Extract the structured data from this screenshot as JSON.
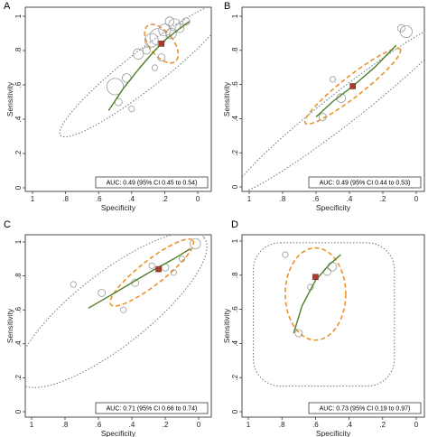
{
  "chart_data": [
    {
      "type": "scatter",
      "panel_label": "A",
      "xlabel": "Specificity",
      "ylabel": "Sensitivity",
      "xlim": [
        1,
        0
      ],
      "ylim": [
        0,
        1
      ],
      "x_ticks": [
        1,
        0.8,
        0.6,
        0.4,
        0.2,
        0
      ],
      "x_tick_labels": [
        "1",
        ".8",
        ".6",
        ".4",
        ".2",
        "0"
      ],
      "y_ticks": [
        0,
        0.2,
        0.4,
        0.6,
        0.8,
        1
      ],
      "y_tick_labels": [
        "0",
        ".2",
        ".4",
        ".6",
        ".8",
        "1"
      ],
      "auc_text": "AUC: 0.49 (95% CI 0.45 to 0.54)",
      "summary_point": {
        "specificity": 0.22,
        "sensitivity": 0.84
      },
      "studies": [
        {
          "specificity": 0.5,
          "sensitivity": 0.59,
          "weight": 9
        },
        {
          "specificity": 0.43,
          "sensitivity": 0.64,
          "weight": 4
        },
        {
          "specificity": 0.48,
          "sensitivity": 0.5,
          "weight": 3
        },
        {
          "specificity": 0.36,
          "sensitivity": 0.78,
          "weight": 5
        },
        {
          "specificity": 0.31,
          "sensitivity": 0.8,
          "weight": 3
        },
        {
          "specificity": 0.28,
          "sensitivity": 0.86,
          "weight": 7
        },
        {
          "specificity": 0.24,
          "sensitivity": 0.88,
          "weight": 9
        },
        {
          "specificity": 0.2,
          "sensitivity": 0.92,
          "weight": 6
        },
        {
          "specificity": 0.16,
          "sensitivity": 0.9,
          "weight": 5
        },
        {
          "specificity": 0.14,
          "sensitivity": 0.95,
          "weight": 6
        },
        {
          "specificity": 0.17,
          "sensitivity": 0.97,
          "weight": 4
        },
        {
          "specificity": 0.11,
          "sensitivity": 0.93,
          "weight": 4
        },
        {
          "specificity": 0.07,
          "sensitivity": 0.97,
          "weight": 3
        },
        {
          "specificity": 0.22,
          "sensitivity": 0.76,
          "weight": 3
        },
        {
          "specificity": 0.26,
          "sensitivity": 0.7,
          "weight": 2
        },
        {
          "specificity": 0.4,
          "sensitivity": 0.46,
          "weight": 2
        }
      ],
      "sroc_curve": [
        [
          0.54,
          0.45
        ],
        [
          0.45,
          0.58
        ],
        [
          0.35,
          0.7
        ],
        [
          0.27,
          0.79
        ],
        [
          0.2,
          0.86
        ],
        [
          0.12,
          0.92
        ],
        [
          0.05,
          0.97
        ]
      ],
      "confidence_region": {
        "center": [
          0.22,
          0.84
        ],
        "rx": 0.06,
        "ry": 0.11
      },
      "prediction_region": {
        "center": [
          0.32,
          0.69
        ],
        "rx": 0.48,
        "ry": 0.08
      }
    },
    {
      "type": "scatter",
      "panel_label": "B",
      "xlabel": "Specificity",
      "ylabel": "Sensitivity",
      "xlim": [
        1,
        0
      ],
      "ylim": [
        0,
        1
      ],
      "x_ticks": [
        1,
        0.8,
        0.6,
        0.4,
        0.2,
        0
      ],
      "x_tick_labels": [
        "1",
        ".8",
        ".6",
        ".4",
        ".2",
        "0"
      ],
      "y_ticks": [
        0,
        0.2,
        0.4,
        0.6,
        0.8,
        1
      ],
      "y_tick_labels": [
        "0",
        ".2",
        ".4",
        ".6",
        ".8",
        "1"
      ],
      "auc_text": "AUC: 0.49 (95% CI 0.44 to 0.53)",
      "summary_point": {
        "specificity": 0.38,
        "sensitivity": 0.59
      },
      "studies": [
        {
          "specificity": 0.06,
          "sensitivity": 0.91,
          "weight": 6
        },
        {
          "specificity": 0.09,
          "sensitivity": 0.93,
          "weight": 3
        },
        {
          "specificity": 0.45,
          "sensitivity": 0.52,
          "weight": 4
        },
        {
          "specificity": 0.56,
          "sensitivity": 0.41,
          "weight": 3
        },
        {
          "specificity": 0.5,
          "sensitivity": 0.63,
          "weight": 2
        }
      ],
      "sroc_curve": [
        [
          0.6,
          0.41
        ],
        [
          0.5,
          0.5
        ],
        [
          0.38,
          0.59
        ],
        [
          0.25,
          0.7
        ],
        [
          0.12,
          0.83
        ]
      ],
      "confidence_region": {
        "center": [
          0.38,
          0.59
        ],
        "rx": 0.3,
        "ry": 0.05
      },
      "prediction_region": {
        "center": [
          0.43,
          0.47
        ],
        "rx": 0.62,
        "ry": 0.07
      }
    },
    {
      "type": "scatter",
      "panel_label": "C",
      "xlabel": "Specificity",
      "ylabel": "Sensitivity",
      "xlim": [
        1,
        0
      ],
      "ylim": [
        0,
        1
      ],
      "x_ticks": [
        1,
        0.8,
        0.6,
        0.4,
        0.2,
        0
      ],
      "x_tick_labels": [
        "1",
        ".8",
        ".6",
        ".4",
        ".2",
        "0"
      ],
      "y_ticks": [
        0,
        0.2,
        0.4,
        0.6,
        0.8,
        1
      ],
      "y_tick_labels": [
        "0",
        ".2",
        ".4",
        ".6",
        ".8",
        "1"
      ],
      "auc_text": "AUC: 0.71 (95% CI 0.66 to 0.74)",
      "summary_point": {
        "specificity": 0.24,
        "sensitivity": 0.84
      },
      "studies": [
        {
          "specificity": 0.02,
          "sensitivity": 0.99,
          "weight": 5
        },
        {
          "specificity": 0.2,
          "sensitivity": 0.85,
          "weight": 3
        },
        {
          "specificity": 0.15,
          "sensitivity": 0.82,
          "weight": 2
        },
        {
          "specificity": 0.28,
          "sensitivity": 0.86,
          "weight": 2
        },
        {
          "specificity": 0.38,
          "sensitivity": 0.76,
          "weight": 3
        },
        {
          "specificity": 0.58,
          "sensitivity": 0.7,
          "weight": 3
        },
        {
          "specificity": 0.45,
          "sensitivity": 0.6,
          "weight": 2
        },
        {
          "specificity": 0.75,
          "sensitivity": 0.75,
          "weight": 2
        },
        {
          "specificity": 0.1,
          "sensitivity": 0.9,
          "weight": 2
        }
      ],
      "sroc_curve": [
        [
          0.66,
          0.61
        ],
        [
          0.52,
          0.69
        ],
        [
          0.4,
          0.76
        ],
        [
          0.28,
          0.83
        ],
        [
          0.15,
          0.9
        ],
        [
          0.05,
          0.96
        ]
      ],
      "confidence_region": {
        "center": [
          0.28,
          0.82
        ],
        "rx": 0.26,
        "ry": 0.06
      },
      "prediction_region": {
        "center": [
          0.52,
          0.6
        ],
        "rx": 0.52,
        "ry": 0.16
      }
    },
    {
      "type": "scatter",
      "panel_label": "D",
      "xlabel": "Specificity",
      "ylabel": "Sensitivity",
      "xlim": [
        1,
        0
      ],
      "ylim": [
        0,
        1
      ],
      "x_ticks": [
        1,
        0.8,
        0.6,
        0.4,
        0.2,
        0
      ],
      "x_tick_labels": [
        "1",
        ".8",
        ".6",
        ".4",
        ".2",
        "0"
      ],
      "y_ticks": [
        0,
        0.2,
        0.4,
        0.6,
        0.8,
        1
      ],
      "y_tick_labels": [
        "0",
        ".2",
        ".4",
        ".6",
        ".8",
        "1"
      ],
      "auc_text": "AUC: 0.73 (95% CI 0.19 to 0.97)",
      "summary_point": {
        "specificity": 0.6,
        "sensitivity": 0.79
      },
      "studies": [
        {
          "specificity": 0.78,
          "sensitivity": 0.92,
          "weight": 2
        },
        {
          "specificity": 0.5,
          "sensitivity": 0.85,
          "weight": 4
        },
        {
          "specificity": 0.53,
          "sensitivity": 0.82,
          "weight": 3
        },
        {
          "specificity": 0.63,
          "sensitivity": 0.73,
          "weight": 2
        },
        {
          "specificity": 0.7,
          "sensitivity": 0.46,
          "weight": 3
        }
      ],
      "sroc_curve": [
        [
          0.73,
          0.46
        ],
        [
          0.68,
          0.62
        ],
        [
          0.6,
          0.77
        ],
        [
          0.52,
          0.86
        ],
        [
          0.45,
          0.92
        ]
      ],
      "confidence_region": {
        "center": [
          0.6,
          0.69
        ],
        "rx": 0.18,
        "ry": 0.27
      },
      "prediction_region": {
        "center": [
          0.55,
          0.57
        ],
        "rx": 0.42,
        "ry": 0.42
      }
    }
  ]
}
